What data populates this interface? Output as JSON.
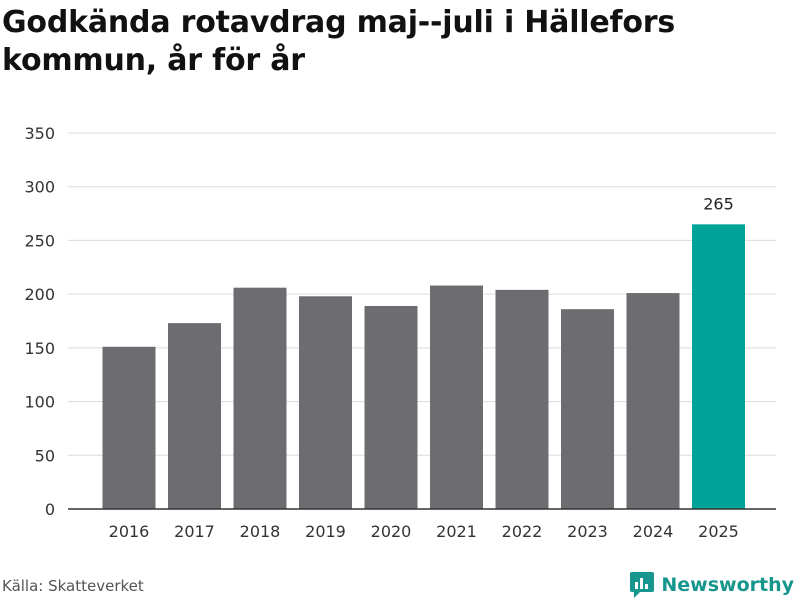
{
  "header": {
    "title_line1": "Godkända rotavdrag maj--juli i Hällefors",
    "title_line2": "kommun, år för år"
  },
  "footer": {
    "source": "Källa: Skatteverket",
    "brand": "Newsworthy",
    "brand_icon": "newsworthy-logo-icon"
  },
  "colors": {
    "bar": "#6d6c71",
    "highlight": "#00a398",
    "grid": "#dcdcdc",
    "axis": "#333333",
    "brand": "#16968c"
  },
  "chart_data": {
    "type": "bar",
    "title": "Godkända rotavdrag maj--juli i Hällefors kommun, år för år",
    "xlabel": "",
    "ylabel": "",
    "categories": [
      "2016",
      "2017",
      "2018",
      "2019",
      "2020",
      "2021",
      "2022",
      "2023",
      "2024",
      "2025"
    ],
    "values": [
      151,
      173,
      206,
      198,
      189,
      208,
      204,
      186,
      201,
      265
    ],
    "highlight_index": 9,
    "data_labels": [
      {
        "index": 9,
        "text": "265"
      }
    ],
    "ylim": [
      0,
      350
    ],
    "yticks": [
      0,
      50,
      100,
      150,
      200,
      250,
      300,
      350
    ],
    "grid": true,
    "legend": "none"
  }
}
